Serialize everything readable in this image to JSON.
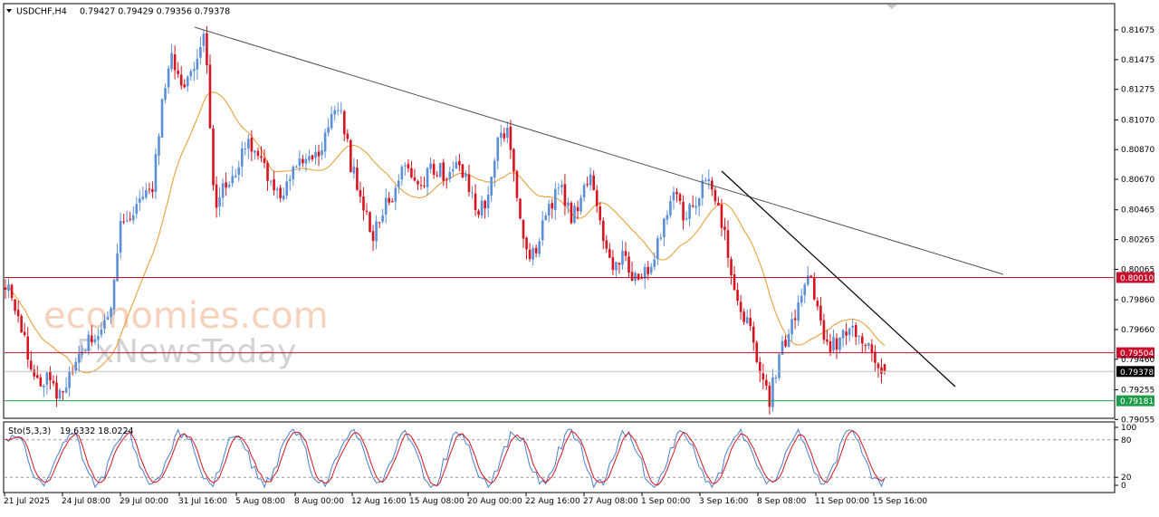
{
  "header": {
    "symbol": "USDCHF,H4",
    "ohlc": "0.79427 0.79429 0.79356 0.79378"
  },
  "stoch_header": {
    "label": "Sto(5,3,3)",
    "values": "19.6332 18.0224"
  },
  "watermark": {
    "line1": "economies.com",
    "line2": "FxNewsToday"
  },
  "colors": {
    "bull": "#5b8fd8",
    "bear": "#d7141f",
    "ma": "#e8a23c",
    "resistance": "#c8102e",
    "support": "#1f9d4a",
    "trend": "#000000"
  },
  "chart_data": {
    "type": "candlestick",
    "ylim": [
      0.79055,
      0.81775
    ],
    "y_ticks": [
      "0.81675",
      "0.81475",
      "0.81275",
      "0.81070",
      "0.80870",
      "0.80670",
      "0.80465",
      "0.80265",
      "0.80065",
      "0.79860",
      "0.79660",
      "0.79460",
      "0.79255",
      "0.79055"
    ],
    "x_ticks": [
      "21 Jul 2025",
      "24 Jul 08:00",
      "29 Jul 00:00",
      "31 Jul 16:00",
      "5 Aug 08:00",
      "8 Aug 00:00",
      "12 Aug 16:00",
      "15 Aug 08:00",
      "20 Aug 00:00",
      "22 Aug 16:00",
      "27 Aug 08:00",
      "1 Sep 00:00",
      "3 Sep 16:00",
      "8 Sep 08:00",
      "11 Sep 00:00",
      "15 Sep 16:00"
    ],
    "resistance_1": "0.80010",
    "resistance_2": "0.79504",
    "current_price": "0.79378",
    "support": "0.79181",
    "close_path": [
      {
        "x": "21 Jul",
        "close": 0.7998
      },
      {
        "x": "21 Jul 20:00",
        "close": 0.7978
      },
      {
        "x": "22 Jul",
        "close": 0.7955
      },
      {
        "x": "22 Jul 12:00",
        "close": 0.7928
      },
      {
        "x": "23 Jul",
        "close": 0.7935
      },
      {
        "x": "23 Jul 12:00",
        "close": 0.7921
      },
      {
        "x": "24 Jul",
        "close": 0.7931
      },
      {
        "x": "24 Jul 08:00",
        "close": 0.7945
      },
      {
        "x": "25 Jul",
        "close": 0.7961
      },
      {
        "x": "25 Jul 16:00",
        "close": 0.796
      },
      {
        "x": "28 Jul",
        "close": 0.7975
      },
      {
        "x": "28 Jul 12:00",
        "close": 0.8035
      },
      {
        "x": "28 Jul 20:00",
        "close": 0.8046
      },
      {
        "x": "29 Jul",
        "close": 0.805
      },
      {
        "x": "29 Jul 08:00",
        "close": 0.8059
      },
      {
        "x": "29 Jul 16:00",
        "close": 0.812
      },
      {
        "x": "30 Jul",
        "close": 0.815
      },
      {
        "x": "30 Jul 12:00",
        "close": 0.8128
      },
      {
        "x": "31 Jul",
        "close": 0.8138
      },
      {
        "x": "31 Jul 16:00",
        "close": 0.8167
      },
      {
        "x": "1 Aug",
        "close": 0.8048
      },
      {
        "x": "1 Aug 12:00",
        "close": 0.8065
      },
      {
        "x": "4 Aug",
        "close": 0.807
      },
      {
        "x": "4 Aug 12:00",
        "close": 0.8095
      },
      {
        "x": "5 Aug",
        "close": 0.8083
      },
      {
        "x": "5 Aug 08:00",
        "close": 0.8071
      },
      {
        "x": "6 Aug",
        "close": 0.8056
      },
      {
        "x": "6 Aug 12:00",
        "close": 0.8066
      },
      {
        "x": "7 Aug",
        "close": 0.8076
      },
      {
        "x": "7 Aug 12:00",
        "close": 0.8082
      },
      {
        "x": "8 Aug",
        "close": 0.8085
      },
      {
        "x": "8 Aug 12:00",
        "close": 0.811
      },
      {
        "x": "11 Aug",
        "close": 0.8118
      },
      {
        "x": "11 Aug 12:00",
        "close": 0.8075
      },
      {
        "x": "12 Aug",
        "close": 0.8058
      },
      {
        "x": "12 Aug 16:00",
        "close": 0.8025
      },
      {
        "x": "13 Aug",
        "close": 0.8045
      },
      {
        "x": "13 Aug 12:00",
        "close": 0.8058
      },
      {
        "x": "14 Aug",
        "close": 0.808
      },
      {
        "x": "14 Aug 12:00",
        "close": 0.8062
      },
      {
        "x": "15 Aug",
        "close": 0.8068
      },
      {
        "x": "15 Aug 08:00",
        "close": 0.8075
      },
      {
        "x": "18 Aug",
        "close": 0.807
      },
      {
        "x": "18 Aug 12:00",
        "close": 0.8082
      },
      {
        "x": "19 Aug",
        "close": 0.8068
      },
      {
        "x": "19 Aug 12:00",
        "close": 0.8045
      },
      {
        "x": "20 Aug",
        "close": 0.8055
      },
      {
        "x": "20 Aug 12:00",
        "close": 0.809
      },
      {
        "x": "21 Aug",
        "close": 0.81
      },
      {
        "x": "21 Aug 12:00",
        "close": 0.8052
      },
      {
        "x": "22 Aug",
        "close": 0.801
      },
      {
        "x": "22 Aug 16:00",
        "close": 0.8027
      },
      {
        "x": "25 Aug",
        "close": 0.805
      },
      {
        "x": "25 Aug 12:00",
        "close": 0.806
      },
      {
        "x": "26 Aug",
        "close": 0.8042
      },
      {
        "x": "26 Aug 12:00",
        "close": 0.8055
      },
      {
        "x": "27 Aug",
        "close": 0.8068
      },
      {
        "x": "27 Aug 08:00",
        "close": 0.803
      },
      {
        "x": "28 Aug",
        "close": 0.8008
      },
      {
        "x": "28 Aug 12:00",
        "close": 0.8015
      },
      {
        "x": "29 Aug",
        "close": 0.7998
      },
      {
        "x": "29 Aug 12:00",
        "close": 0.8006
      },
      {
        "x": "1 Sep",
        "close": 0.8012
      },
      {
        "x": "1 Sep 12:00",
        "close": 0.8045
      },
      {
        "x": "2 Sep",
        "close": 0.8058
      },
      {
        "x": "2 Sep 12:00",
        "close": 0.804
      },
      {
        "x": "3 Sep",
        "close": 0.8052
      },
      {
        "x": "3 Sep 16:00",
        "close": 0.8068
      },
      {
        "x": "4 Sep",
        "close": 0.8048
      },
      {
        "x": "4 Sep 12:00",
        "close": 0.802
      },
      {
        "x": "5 Sep",
        "close": 0.7978
      },
      {
        "x": "5 Sep 12:00",
        "close": 0.7972
      },
      {
        "x": "8 Sep",
        "close": 0.794
      },
      {
        "x": "8 Sep 08:00",
        "close": 0.792
      },
      {
        "x": "9 Sep",
        "close": 0.7948
      },
      {
        "x": "9 Sep 12:00",
        "close": 0.7972
      },
      {
        "x": "10 Sep",
        "close": 0.7985
      },
      {
        "x": "10 Sep 12:00",
        "close": 0.8002
      },
      {
        "x": "11 Sep",
        "close": 0.7962
      },
      {
        "x": "11 Sep 12:00",
        "close": 0.7955
      },
      {
        "x": "12 Sep",
        "close": 0.7962
      },
      {
        "x": "12 Sep 12:00",
        "close": 0.7968
      },
      {
        "x": "15 Sep",
        "close": 0.796
      },
      {
        "x": "15 Sep 08:00",
        "close": 0.795
      },
      {
        "x": "15 Sep 16:00",
        "close": 0.7938
      }
    ],
    "stochastic": {
      "levels": [
        80,
        20
      ],
      "y_ticks": [
        "100",
        "80",
        "20",
        "0"
      ],
      "k_last": 19.6332,
      "d_last": 18.0224
    }
  }
}
